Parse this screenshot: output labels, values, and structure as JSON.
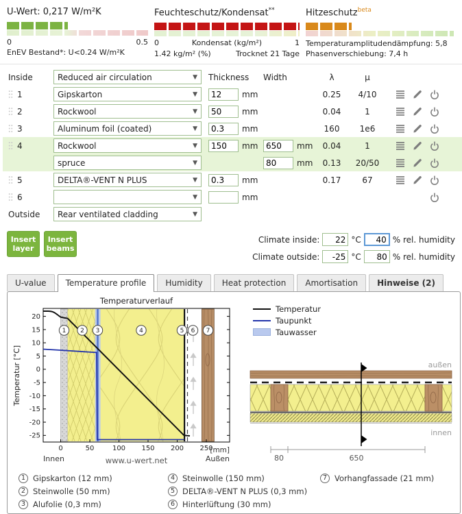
{
  "header": {
    "u_value": {
      "title": "U-Wert: 0,217 W/m²K",
      "fill_pct": 43,
      "bar_color": "#7cb342",
      "scale_min": "0",
      "scale_max": "0.5",
      "note": "EnEV Bestand*: U<0.24 W/m²K"
    },
    "moisture": {
      "title": "Feuchteschutz/Kondensat",
      "sup": "**",
      "fill_pct": 100,
      "bar_color": "#c41414",
      "scale_min": "0",
      "scale_label": "Kondensat (kg/m²)",
      "scale_max": "1",
      "detail_left": "1.42 kg/m² (%)",
      "detail_right": "Trocknet 21 Tage"
    },
    "heat": {
      "title": "Hitzeschutz",
      "sup": "beta",
      "sup_color": "#d9891b",
      "fill_pct": 31,
      "bar_color": "#d9891b",
      "line1": "Temperaturamplitudendämpfung: 5,8",
      "line2": "Phasenverschiebung: 7,4 h"
    }
  },
  "layers": {
    "inside_label": "Inside",
    "outside_label": "Outside",
    "inside_material": "Reduced air circulation",
    "outside_material": "Rear ventilated cladding",
    "col_thickness": "Thickness",
    "col_width": "Width",
    "col_lambda": "λ",
    "col_mu": "μ",
    "unit": "mm",
    "rows": [
      {
        "num": "1",
        "material": "Gipskarton",
        "thickness": "12",
        "width": "",
        "lambda": "0.25",
        "mu": "4/10"
      },
      {
        "num": "2",
        "material": "Rockwool",
        "thickness": "50",
        "width": "",
        "lambda": "0.04",
        "mu": "1"
      },
      {
        "num": "3",
        "material": "Aluminum foil (coated)",
        "thickness": "0.3",
        "width": "",
        "lambda": "160",
        "mu": "1e6"
      },
      {
        "num": "4",
        "material": "Rockwool",
        "thickness": "150",
        "width": "650",
        "lambda": "0.04",
        "mu": "1"
      },
      {
        "num": "",
        "material": "spruce",
        "thickness": "",
        "width": "80",
        "lambda": "0.13",
        "mu": "20/50"
      },
      {
        "num": "5",
        "material": "DELTA®-VENT N PLUS",
        "thickness": "0.3",
        "width": "",
        "lambda": "0.17",
        "mu": "67"
      },
      {
        "num": "6",
        "material": "",
        "thickness": "",
        "width": "",
        "lambda": "",
        "mu": ""
      }
    ]
  },
  "actions": {
    "insert_layer": "Insert layer",
    "insert_beams": "Insert beams"
  },
  "climate": {
    "inside_label": "Climate inside:",
    "outside_label": "Climate outside:",
    "inside_temp": "22",
    "inside_rh": "40",
    "outside_temp": "-25",
    "outside_rh": "80",
    "temp_unit": "°C",
    "rh_unit": "% rel. humidity"
  },
  "tabs": [
    "U-value",
    "Temperature profile",
    "Humidity",
    "Heat protection",
    "Amortisation",
    "Hinweise (2)"
  ],
  "chart": {
    "title": "Temperaturverlauf",
    "y_label": "Temperatur [°C]",
    "y_ticks": [
      "20",
      "15",
      "10",
      "5",
      "0",
      "-5",
      "-10",
      "-15",
      "-20",
      "-25"
    ],
    "x_ticks": [
      "0",
      "50",
      "100",
      "150",
      "200",
      "250"
    ],
    "x_unit": "[mm]",
    "inner_label": "Innen",
    "outer_label": "Außen",
    "watermark": "www.u-wert.net",
    "markers": [
      "1",
      "2",
      "3",
      "4",
      "5",
      "6",
      "7"
    ],
    "legend": [
      {
        "label": "Temperatur",
        "color": "#111111"
      },
      {
        "label": "Taupunkt",
        "color": "#2233aa"
      },
      {
        "label": "Tauwasser",
        "color": "#b9c9ee"
      }
    ]
  },
  "chart_data": {
    "type": "line",
    "title": "Temperaturverlauf",
    "xlabel": "[mm]",
    "ylabel": "Temperatur [°C]",
    "xlim": [
      -30,
      290
    ],
    "ylim": [
      -27.5,
      23
    ],
    "series": [
      {
        "name": "Temperatur",
        "points": [
          [
            -30,
            22
          ],
          [
            0,
            19.6
          ],
          [
            12,
            19.2
          ],
          [
            212,
            -25
          ],
          [
            230,
            -25
          ]
        ]
      },
      {
        "name": "Taupunkt",
        "points": [
          [
            -30,
            7.6
          ],
          [
            0,
            7.1
          ],
          [
            62,
            6.3
          ],
          [
            62,
            -26.6
          ],
          [
            212,
            -26.6
          ]
        ]
      }
    ],
    "layer_boundaries_mm": [
      0,
      12,
      62,
      62.3,
      212.3,
      242.3,
      263.3
    ],
    "condensation_zone_mm": [
      62,
      65
    ]
  },
  "section": {
    "outside_label": "außen",
    "inside_label": "innen",
    "dim_beam": "80",
    "dim_spacing": "650"
  },
  "legend_items": [
    {
      "num": "1",
      "label": "Gipskarton (12 mm)"
    },
    {
      "num": "2",
      "label": "Steinwolle (50 mm)"
    },
    {
      "num": "3",
      "label": "Alufolie (0,3 mm)"
    },
    {
      "num": "4",
      "label": "Steinwolle (150 mm)"
    },
    {
      "num": "5",
      "label": "DELTA®-VENT N PLUS (0,3 mm)"
    },
    {
      "num": "6",
      "label": "Hinterlüftung (30 mm)"
    },
    {
      "num": "7",
      "label": "Vorhangfassade (21 mm)"
    }
  ]
}
